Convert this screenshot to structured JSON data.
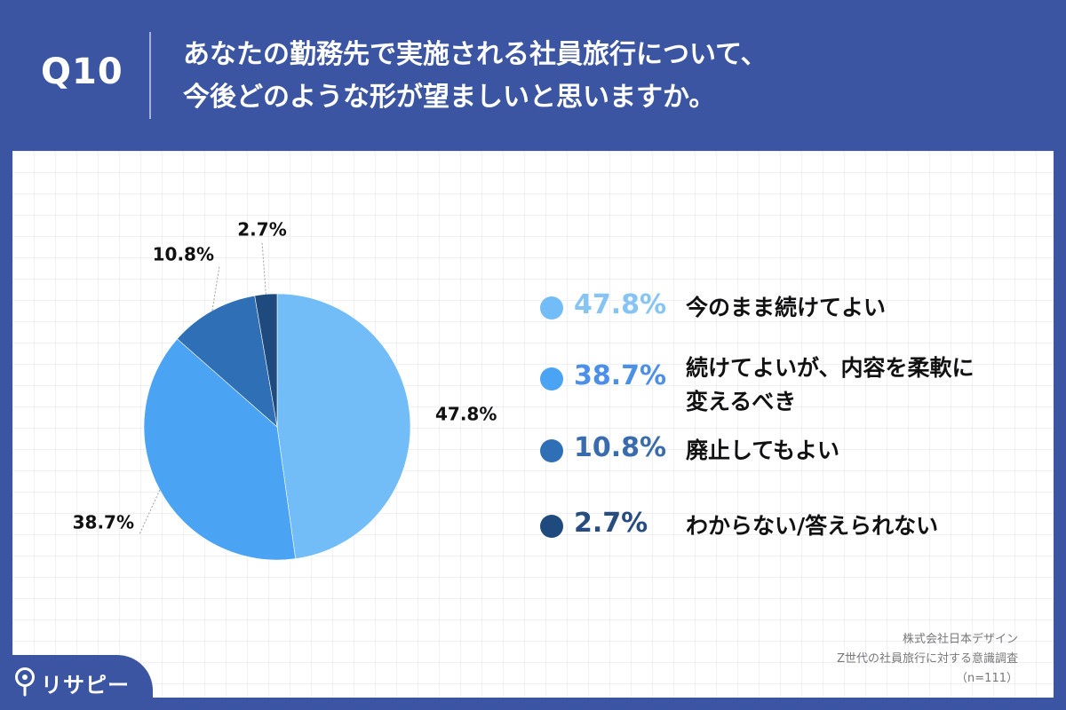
{
  "header": {
    "question_no": "Q10",
    "title_line1": "あなたの勤務先で実施される社員旅行について、",
    "title_line2": "今後どのような形が望ましいと思いますか。"
  },
  "chart_data": {
    "type": "pie",
    "title": "",
    "slices": [
      {
        "label": "今のまま続けてよい",
        "value": 47.8,
        "pct_text": "47.8%",
        "color": "#72bdf7",
        "legend_pct_color": "#86c4f5"
      },
      {
        "label": "続けてよいが、内容を柔軟に変えるべき",
        "value": 38.7,
        "pct_text": "38.7%",
        "color": "#4ba3f3",
        "legend_pct_color": "#4b8fe8"
      },
      {
        "label": "廃止してもよい",
        "value": 10.8,
        "pct_text": "10.8%",
        "color": "#2f6fb5",
        "legend_pct_color": "#3a6cad"
      },
      {
        "label": "わからない/答えられない",
        "value": 2.7,
        "pct_text": "2.7%",
        "color": "#1f4a7e",
        "legend_pct_color": "#264c80"
      }
    ],
    "start": "12 o'clock, clockwise",
    "legend_placement": "right"
  },
  "legend": {
    "lines": [
      [
        "今のまま続けてよい"
      ],
      [
        "続けてよいが、内容を柔軟に",
        "変えるべき"
      ],
      [
        "廃止してもよい"
      ],
      [
        "わからない/答えられない"
      ]
    ]
  },
  "source": {
    "company": "株式会社日本デザイン",
    "survey": "Z世代の社員旅行に対する意識調査",
    "n": "（n=111）"
  },
  "brand": {
    "name": "リサピー"
  },
  "colors": {
    "header_bg": "#3b55a2",
    "card_bg": "#ffffff",
    "grid": "#eef0f5"
  }
}
